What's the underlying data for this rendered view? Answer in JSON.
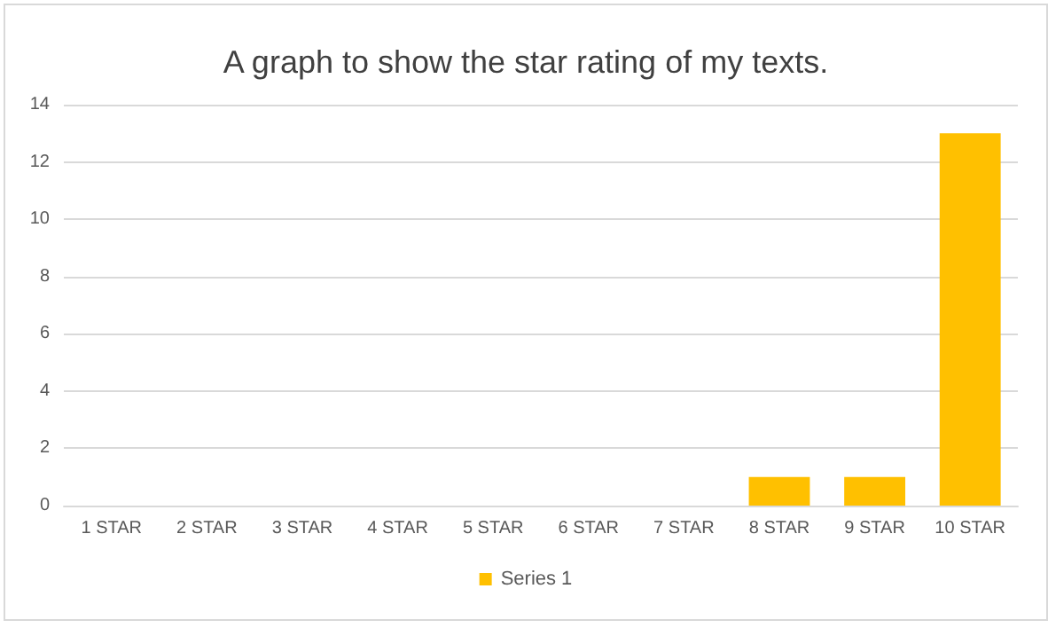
{
  "chart_data": {
    "type": "bar",
    "title": "A graph to show the star rating of my texts.",
    "categories": [
      "1 STAR",
      "2 STAR",
      "3 STAR",
      "4 STAR",
      "5 STAR",
      "6 STAR",
      "7 STAR",
      "8 STAR",
      "9 STAR",
      "10 STAR"
    ],
    "series": [
      {
        "name": "Series 1",
        "color": "#ffc000",
        "values": [
          0,
          0,
          0,
          0,
          0,
          0,
          0,
          1,
          1,
          13
        ]
      }
    ],
    "ylim": [
      0,
      14
    ],
    "yticks": [
      0,
      2,
      4,
      6,
      8,
      10,
      12,
      14
    ],
    "grid": "y",
    "legend": "bottom"
  }
}
